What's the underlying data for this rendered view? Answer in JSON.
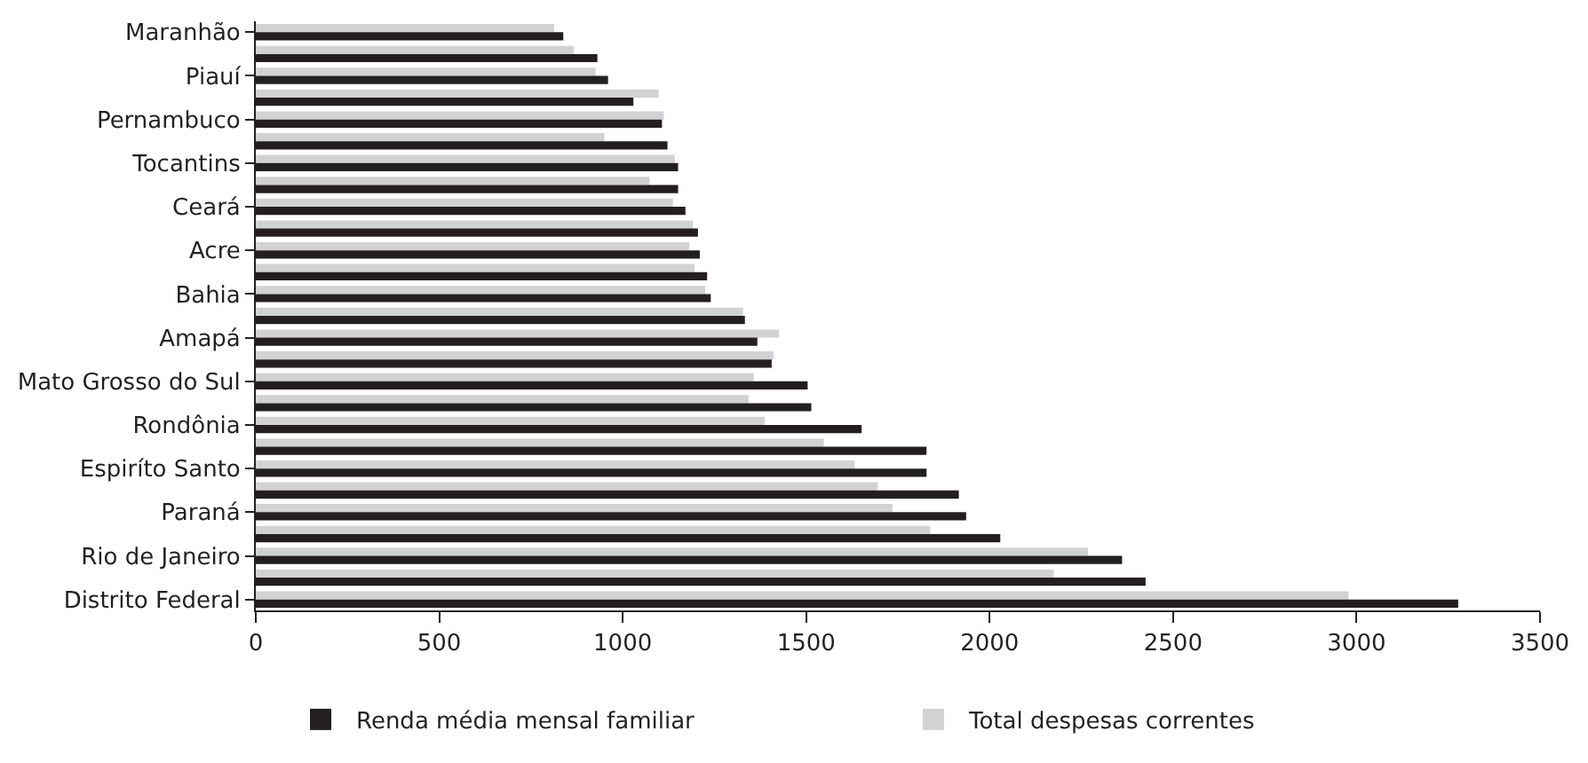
{
  "chart_data": {
    "type": "bar",
    "orientation": "horizontal",
    "categories": [
      "Maranhão",
      null,
      "Piauí",
      null,
      "Pernambuco",
      null,
      "Tocantins",
      null,
      "Ceará",
      null,
      "Acre",
      null,
      "Bahia",
      null,
      "Amapá",
      null,
      "Mato Grosso do Sul",
      null,
      "Rondônia",
      null,
      "Espiríto Santo",
      null,
      "Paraná",
      null,
      "Rio de Janeiro",
      null,
      "Distrito Federal"
    ],
    "series": [
      {
        "name": "Renda média mensal familiar",
        "color": "#231f20",
        "values": [
          838,
          931,
          960,
          1029,
          1107,
          1122,
          1151,
          1151,
          1171,
          1205,
          1210,
          1230,
          1240,
          1333,
          1367,
          1406,
          1504,
          1514,
          1651,
          1828,
          1828,
          1916,
          1936,
          2029,
          2361,
          2425,
          3277
        ]
      },
      {
        "name": "Total despesas correntes",
        "color": "#d1d2d4",
        "values": [
          813,
          867,
          926,
          1098,
          1112,
          950,
          1142,
          1073,
          1137,
          1191,
          1181,
          1196,
          1225,
          1328,
          1426,
          1411,
          1357,
          1343,
          1387,
          1548,
          1632,
          1695,
          1735,
          1838,
          2268,
          2175,
          2978
        ]
      }
    ],
    "xlim": [
      0,
      3500
    ],
    "xticks": [
      0,
      500,
      1000,
      1500,
      2000,
      2500,
      3000,
      3500
    ],
    "legend": "bottom"
  }
}
